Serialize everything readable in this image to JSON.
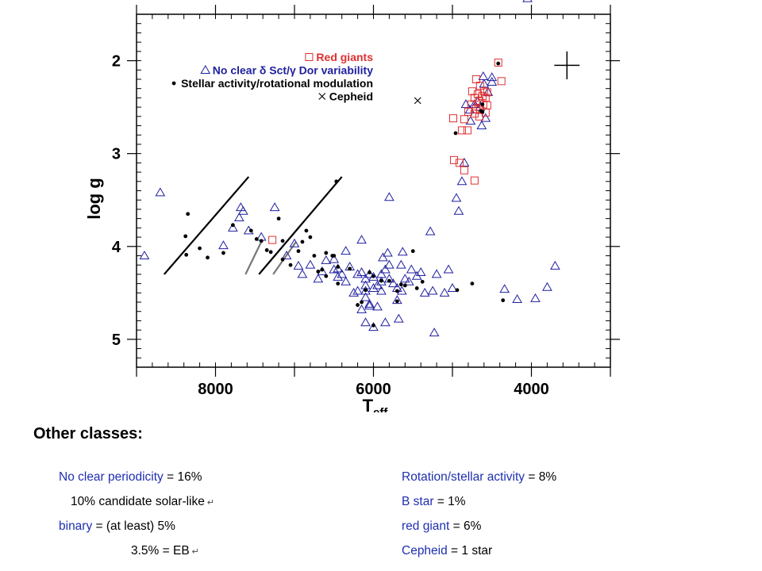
{
  "chart_data": {
    "type": "scatter",
    "title": "",
    "xlabel": "T",
    "xlabel_sub": "eff",
    "ylabel": "log g",
    "xlim": [
      9000,
      3000
    ],
    "ylim": [
      5.3,
      1.5
    ],
    "xticks": [
      8000,
      6000,
      4000
    ],
    "yticks": [
      2,
      3,
      4,
      5
    ],
    "x_minor_step": 200,
    "y_minor_step": 0.1,
    "legend": {
      "placement": "top-left",
      "entries": [
        {
          "text": "Red giants",
          "marker": "square",
          "color": "#e03030"
        },
        {
          "text": "No clear δ Sct/γ Dor variability",
          "marker": "triangle",
          "color": "#1f1fa0"
        },
        {
          "text": "Stellar activity/rotational modulation",
          "marker": "dot",
          "color": "#000000"
        },
        {
          "text": "Cepheid",
          "marker": "cross",
          "color": "#000000"
        }
      ]
    },
    "error_cross": {
      "x": 3550,
      "y": 2.05,
      "dx": 160,
      "dy": 0.3
    },
    "instability_strip_lines": [
      {
        "color": "#000000",
        "from": [
          8650,
          4.3
        ],
        "to": [
          7580,
          3.25
        ]
      },
      {
        "color": "#000000",
        "from": [
          7450,
          4.3
        ],
        "to": [
          6400,
          3.25
        ]
      },
      {
        "color": "#777777",
        "from": [
          7620,
          4.3
        ],
        "to": [
          7420,
          3.95
        ]
      },
      {
        "color": "#777777",
        "from": [
          7270,
          4.3
        ],
        "to": [
          6980,
          3.95
        ]
      }
    ],
    "series": [
      {
        "name": "Red giants",
        "marker": "square",
        "color": "#e03030",
        "points": [
          [
            4420,
            2.02
          ],
          [
            4700,
            2.2
          ],
          [
            4650,
            2.27
          ],
          [
            4750,
            2.33
          ],
          [
            4600,
            2.33
          ],
          [
            4560,
            2.34
          ],
          [
            4680,
            2.36
          ],
          [
            4620,
            2.38
          ],
          [
            4720,
            2.4
          ],
          [
            4580,
            2.4
          ],
          [
            4660,
            2.43
          ],
          [
            4760,
            2.47
          ],
          [
            4610,
            2.47
          ],
          [
            4560,
            2.48
          ],
          [
            4700,
            2.52
          ],
          [
            4650,
            2.53
          ],
          [
            4800,
            2.55
          ],
          [
            4580,
            2.56
          ],
          [
            4720,
            2.57
          ],
          [
            4660,
            2.6
          ],
          [
            4990,
            2.62
          ],
          [
            4850,
            2.63
          ],
          [
            4880,
            2.75
          ],
          [
            4810,
            2.75
          ],
          [
            4980,
            3.07
          ],
          [
            4910,
            3.1
          ],
          [
            4850,
            3.18
          ],
          [
            4720,
            3.29
          ],
          [
            4380,
            2.22
          ],
          [
            7280,
            3.93
          ]
        ]
      },
      {
        "name": "No clear δ Sct/γ Dor variability",
        "marker": "triangle",
        "color": "#1f1fa0",
        "points": [
          [
            8700,
            3.42
          ],
          [
            8900,
            4.1
          ],
          [
            7900,
            3.99
          ],
          [
            7780,
            3.8
          ],
          [
            7700,
            3.69
          ],
          [
            7680,
            3.58
          ],
          [
            7650,
            3.62
          ],
          [
            7580,
            3.83
          ],
          [
            7420,
            3.9
          ],
          [
            7250,
            3.58
          ],
          [
            7100,
            4.1
          ],
          [
            7000,
            3.97
          ],
          [
            6950,
            4.21
          ],
          [
            6900,
            4.3
          ],
          [
            6800,
            4.2
          ],
          [
            6700,
            4.35
          ],
          [
            6650,
            4.27
          ],
          [
            6600,
            4.15
          ],
          [
            6500,
            4.14
          ],
          [
            6450,
            4.24
          ],
          [
            6400,
            4.3
          ],
          [
            6350,
            4.05
          ],
          [
            6350,
            4.38
          ],
          [
            6300,
            4.22
          ],
          [
            6250,
            4.5
          ],
          [
            6200,
            4.3
          ],
          [
            6150,
            4.28
          ],
          [
            6100,
            4.35
          ],
          [
            6100,
            4.55
          ],
          [
            6050,
            4.3
          ],
          [
            6000,
            4.33
          ],
          [
            5950,
            4.42
          ],
          [
            5950,
            4.65
          ],
          [
            5900,
            4.3
          ],
          [
            5850,
            4.25
          ],
          [
            5800,
            4.2
          ],
          [
            5800,
            4.35
          ],
          [
            5750,
            4.4
          ],
          [
            5700,
            4.45
          ],
          [
            5650,
            4.2
          ],
          [
            5600,
            4.35
          ],
          [
            6100,
            4.48
          ],
          [
            6050,
            4.62
          ],
          [
            6000,
            4.45
          ],
          [
            5900,
            4.48
          ],
          [
            6150,
            3.93
          ],
          [
            5880,
            4.12
          ],
          [
            5820,
            4.07
          ],
          [
            5630,
            4.06
          ],
          [
            5800,
            3.47
          ],
          [
            5520,
            4.25
          ],
          [
            5450,
            4.32
          ],
          [
            5400,
            4.28
          ],
          [
            5350,
            4.5
          ],
          [
            5250,
            4.48
          ],
          [
            5200,
            4.3
          ],
          [
            5100,
            4.5
          ],
          [
            5050,
            4.25
          ],
          [
            5000,
            4.45
          ],
          [
            4920,
            3.62
          ],
          [
            4950,
            3.48
          ],
          [
            4880,
            3.3
          ],
          [
            4850,
            3.1
          ],
          [
            4770,
            2.65
          ],
          [
            4780,
            2.53
          ],
          [
            4720,
            2.47
          ],
          [
            4650,
            2.5
          ],
          [
            4680,
            2.44
          ],
          [
            4600,
            2.25
          ],
          [
            4610,
            2.17
          ],
          [
            4550,
            2.34
          ],
          [
            4630,
            2.7
          ],
          [
            4580,
            2.62
          ],
          [
            4500,
            2.23
          ],
          [
            5280,
            3.84
          ],
          [
            5550,
            4.38
          ],
          [
            5640,
            4.48
          ],
          [
            5700,
            4.58
          ],
          [
            6050,
            4.64
          ],
          [
            6100,
            4.82
          ],
          [
            6200,
            4.48
          ],
          [
            6000,
            4.87
          ],
          [
            5850,
            4.82
          ],
          [
            5680,
            4.78
          ],
          [
            5230,
            4.93
          ],
          [
            4340,
            4.46
          ],
          [
            4180,
            4.57
          ],
          [
            3950,
            4.56
          ],
          [
            3800,
            4.44
          ],
          [
            3700,
            4.21
          ],
          [
            4050,
            1.33
          ],
          [
            4500,
            2.18
          ],
          [
            4830,
            2.47
          ],
          [
            6500,
            4.25
          ],
          [
            6450,
            4.33
          ],
          [
            6150,
            4.68
          ],
          [
            6100,
            4.42
          ],
          [
            5900,
            4.38
          ]
        ]
      },
      {
        "name": "Stellar activity/rotational modulation",
        "marker": "dot",
        "color": "#000000",
        "points": [
          [
            8350,
            3.65
          ],
          [
            8380,
            3.89
          ],
          [
            8370,
            4.09
          ],
          [
            8200,
            4.02
          ],
          [
            8100,
            4.12
          ],
          [
            7900,
            4.07
          ],
          [
            7780,
            3.77
          ],
          [
            7550,
            3.83
          ],
          [
            7480,
            3.92
          ],
          [
            7420,
            3.94
          ],
          [
            7350,
            4.04
          ],
          [
            7300,
            4.06
          ],
          [
            7200,
            3.7
          ],
          [
            7150,
            3.94
          ],
          [
            7150,
            4.14
          ],
          [
            7050,
            4.2
          ],
          [
            6950,
            4.05
          ],
          [
            6900,
            3.95
          ],
          [
            6850,
            3.83
          ],
          [
            6800,
            3.9
          ],
          [
            6750,
            4.1
          ],
          [
            6700,
            4.27
          ],
          [
            6650,
            4.25
          ],
          [
            6600,
            4.32
          ],
          [
            6600,
            4.07
          ],
          [
            6500,
            4.1
          ],
          [
            6450,
            4.22
          ],
          [
            6450,
            4.4
          ],
          [
            6300,
            4.24
          ],
          [
            6200,
            4.63
          ],
          [
            6150,
            4.6
          ],
          [
            6100,
            4.47
          ],
          [
            6050,
            4.28
          ],
          [
            6000,
            4.32
          ],
          [
            6000,
            4.85
          ],
          [
            5900,
            4.37
          ],
          [
            5800,
            4.37
          ],
          [
            5700,
            4.48
          ],
          [
            5650,
            4.41
          ],
          [
            5600,
            4.42
          ],
          [
            5700,
            4.59
          ],
          [
            5500,
            4.05
          ],
          [
            5450,
            4.45
          ],
          [
            5380,
            4.38
          ],
          [
            4960,
            2.78
          ],
          [
            4940,
            4.47
          ],
          [
            4640,
            2.54
          ],
          [
            4620,
            2.47
          ],
          [
            4620,
            2.55
          ],
          [
            4750,
            4.4
          ],
          [
            4360,
            4.58
          ],
          [
            4420,
            2.03
          ],
          [
            6470,
            3.3
          ],
          [
            6520,
            4.1
          ]
        ]
      },
      {
        "name": "Cepheid",
        "marker": "cross",
        "color": "#000000",
        "points": [
          [
            5440,
            2.43
          ]
        ]
      }
    ]
  },
  "notes": {
    "heading": "Other classes:",
    "left": [
      {
        "key": "No clear periodicity",
        "value": " = 16%",
        "ret": false
      },
      {
        "key": "",
        "value": "10% candidate solar-like",
        "ret": true
      },
      {
        "key": "binary",
        "value": " = (at least) 5%",
        "ret": false
      },
      {
        "key": "",
        "value": "3.5% = EB",
        "ret": true
      }
    ],
    "right": [
      {
        "key": "Rotation/stellar activity",
        "value": " = 8%",
        "ret": false
      },
      {
        "key": "B star",
        "value": " = 1%",
        "ret": false
      },
      {
        "key": "red giant",
        "value": " = 6%",
        "ret": false
      },
      {
        "key": "Cepheid",
        "value": " = 1 star",
        "ret": false
      }
    ],
    "return_glyph": "↵"
  }
}
